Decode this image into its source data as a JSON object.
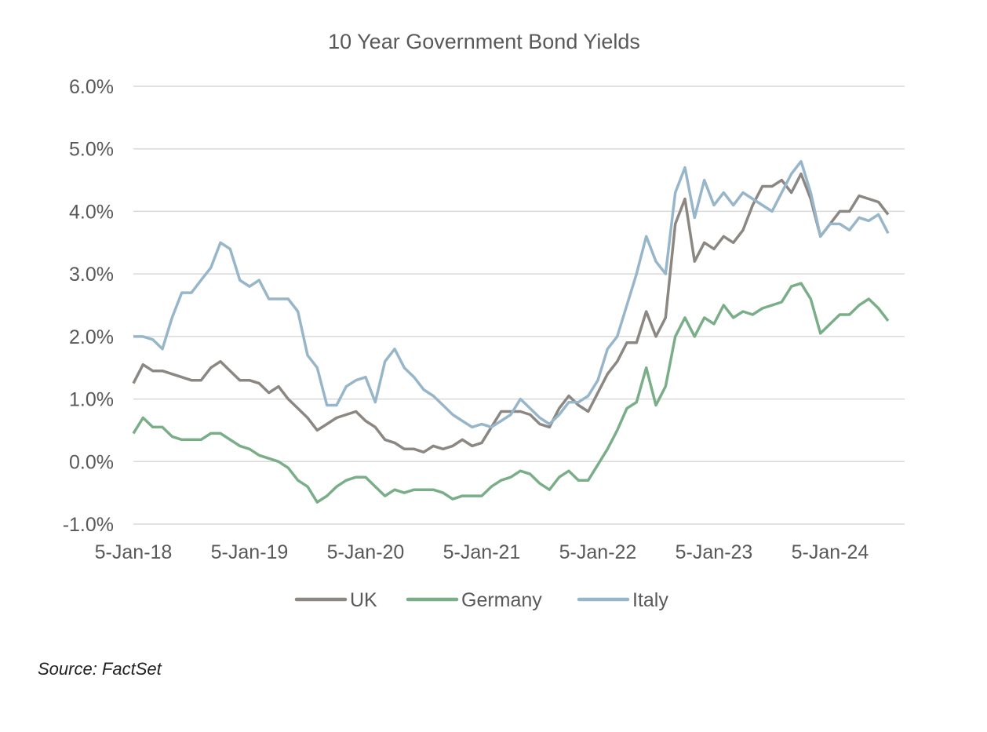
{
  "chart_data": {
    "type": "line",
    "title": "10 Year Government Bond Yields",
    "xlabel": "",
    "ylabel": "",
    "ylim": [
      -1.0,
      6.0
    ],
    "yticks": [
      -1.0,
      0.0,
      1.0,
      2.0,
      3.0,
      4.0,
      5.0,
      6.0
    ],
    "ytick_labels": [
      "-1.0%",
      "0.0%",
      "1.0%",
      "2.0%",
      "3.0%",
      "4.0%",
      "5.0%",
      "6.0%"
    ],
    "xticks": [
      "5-Jan-18",
      "5-Jan-19",
      "5-Jan-20",
      "5-Jan-21",
      "5-Jan-22",
      "5-Jan-23",
      "5-Jan-24"
    ],
    "x_start": "2018-01",
    "x_frequency": "monthly",
    "grid": true,
    "legend": "bottom",
    "series": [
      {
        "name": "UK",
        "color": "#8c8782",
        "values": [
          1.25,
          1.55,
          1.45,
          1.45,
          1.4,
          1.35,
          1.3,
          1.3,
          1.5,
          1.6,
          1.45,
          1.3,
          1.3,
          1.25,
          1.1,
          1.2,
          1.0,
          0.85,
          0.7,
          0.5,
          0.6,
          0.7,
          0.75,
          0.8,
          0.65,
          0.55,
          0.35,
          0.3,
          0.2,
          0.2,
          0.15,
          0.25,
          0.2,
          0.25,
          0.35,
          0.25,
          0.3,
          0.55,
          0.8,
          0.8,
          0.8,
          0.75,
          0.6,
          0.55,
          0.85,
          1.05,
          0.9,
          0.8,
          1.1,
          1.4,
          1.6,
          1.9,
          1.9,
          2.4,
          2.0,
          2.3,
          3.8,
          4.2,
          3.2,
          3.5,
          3.4,
          3.6,
          3.5,
          3.7,
          4.1,
          4.4,
          4.4,
          4.5,
          4.3,
          4.6,
          4.2,
          3.6,
          3.8,
          4.0,
          4.0,
          4.25,
          4.2,
          4.15,
          3.95
        ]
      },
      {
        "name": "Germany",
        "color": "#7aae88",
        "values": [
          0.45,
          0.7,
          0.55,
          0.55,
          0.4,
          0.35,
          0.35,
          0.35,
          0.45,
          0.45,
          0.35,
          0.25,
          0.2,
          0.1,
          0.05,
          0.0,
          -0.1,
          -0.3,
          -0.4,
          -0.65,
          -0.55,
          -0.4,
          -0.3,
          -0.25,
          -0.25,
          -0.4,
          -0.55,
          -0.45,
          -0.5,
          -0.45,
          -0.45,
          -0.45,
          -0.5,
          -0.6,
          -0.55,
          -0.55,
          -0.55,
          -0.4,
          -0.3,
          -0.25,
          -0.15,
          -0.2,
          -0.35,
          -0.45,
          -0.25,
          -0.15,
          -0.3,
          -0.3,
          -0.05,
          0.2,
          0.5,
          0.85,
          0.95,
          1.5,
          0.9,
          1.2,
          2.0,
          2.3,
          2.0,
          2.3,
          2.2,
          2.5,
          2.3,
          2.4,
          2.35,
          2.45,
          2.5,
          2.55,
          2.8,
          2.85,
          2.6,
          2.05,
          2.2,
          2.35,
          2.35,
          2.5,
          2.6,
          2.45,
          2.25
        ]
      },
      {
        "name": "Italy",
        "color": "#98b6c9",
        "values": [
          2.0,
          2.0,
          1.95,
          1.8,
          2.3,
          2.7,
          2.7,
          2.9,
          3.1,
          3.5,
          3.4,
          2.9,
          2.8,
          2.9,
          2.6,
          2.6,
          2.6,
          2.4,
          1.7,
          1.5,
          0.9,
          0.9,
          1.2,
          1.3,
          1.35,
          0.95,
          1.6,
          1.8,
          1.5,
          1.35,
          1.15,
          1.05,
          0.9,
          0.75,
          0.65,
          0.55,
          0.6,
          0.55,
          0.65,
          0.75,
          1.0,
          0.85,
          0.7,
          0.6,
          0.75,
          0.95,
          0.95,
          1.05,
          1.3,
          1.8,
          2.0,
          2.5,
          3.0,
          3.6,
          3.2,
          3.0,
          4.3,
          4.7,
          3.9,
          4.5,
          4.1,
          4.3,
          4.1,
          4.3,
          4.2,
          4.1,
          4.0,
          4.3,
          4.6,
          4.8,
          4.3,
          3.6,
          3.8,
          3.8,
          3.7,
          3.9,
          3.85,
          3.95,
          3.65
        ]
      }
    ]
  },
  "source": "Source: FactSet"
}
